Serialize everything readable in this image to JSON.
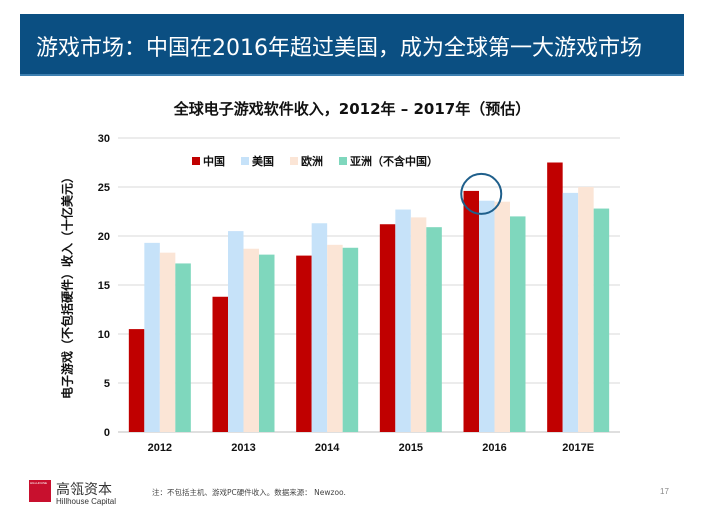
{
  "slide": {
    "title": "游戏市场：中国在2016年超过美国，成为全球第一大游戏市场",
    "footnote": "注：不包括主机、游戏PC硬件收入。数据来源：  Newzoo.",
    "page_number": "17",
    "logo": {
      "mark_text": "HILLHOUSE",
      "cn": "高瓴资本",
      "en": "Hillhouse Capital",
      "color": "#c8102e"
    }
  },
  "chart_data": {
    "type": "bar",
    "title": "全球电子游戏软件收入，2012年 – 2017年（预估）",
    "xlabel": "",
    "ylabel": "电子游戏（不包括硬件）收入（十亿美元）",
    "ylim": [
      0,
      30
    ],
    "yticks": [
      0,
      5,
      10,
      15,
      20,
      25,
      30
    ],
    "grid": true,
    "legend_position": "top-left",
    "categories": [
      "2012",
      "2013",
      "2014",
      "2015",
      "2016",
      "2017E"
    ],
    "series": [
      {
        "name": "中国",
        "color": "#c00000",
        "values": [
          10.5,
          13.8,
          18.0,
          21.2,
          24.6,
          27.5
        ]
      },
      {
        "name": "美国",
        "color": "#c6e2f9",
        "values": [
          19.3,
          20.5,
          21.3,
          22.7,
          23.6,
          24.4
        ]
      },
      {
        "name": "欧洲",
        "color": "#fbe5d6",
        "values": [
          18.3,
          18.7,
          19.1,
          21.9,
          23.5,
          25.0
        ]
      },
      {
        "name": "亚洲（不含中国）",
        "color": "#7fd7bd",
        "values": [
          17.2,
          18.1,
          18.8,
          20.9,
          22.0,
          22.8
        ]
      }
    ],
    "highlight": {
      "category": "2016",
      "series": "中国",
      "color": "#1f5f8b"
    }
  }
}
